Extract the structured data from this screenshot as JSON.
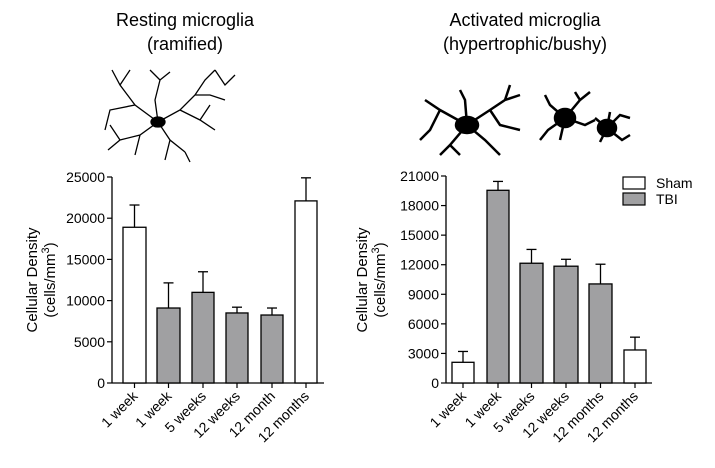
{
  "panels": [
    {
      "title": "Resting microglia",
      "subtitle": "(ramified)",
      "image": "ramified-microglia-drawing"
    },
    {
      "title": "Activated microglia",
      "subtitle": "(hypertrophic/bushy)",
      "image": "bushy-microglia-drawing"
    }
  ],
  "chart_data": [
    {
      "type": "bar",
      "ylabel": "Cellular Density",
      "ylabel_units": "(cells/mm",
      "ylabel_sup": "3",
      "ylabel_close": ")",
      "ylim": [
        0,
        25000
      ],
      "yticks": [
        "0",
        "5000",
        "10000",
        "15000",
        "20000",
        "25000"
      ],
      "ytick_values": [
        0,
        5000,
        10000,
        15000,
        20000,
        25000
      ],
      "categories": [
        "1 week",
        "1 week",
        "5 weeks",
        "12 weeks",
        "12 month",
        "12 months"
      ],
      "groups": [
        "Sham",
        "TBI",
        "TBI",
        "TBI",
        "TBI",
        "Sham"
      ],
      "values": [
        18900,
        9100,
        11000,
        8500,
        8250,
        22100
      ],
      "errors": [
        2700,
        3050,
        2500,
        700,
        850,
        2800
      ]
    },
    {
      "type": "bar",
      "ylabel": "Cellular Density",
      "ylabel_units": "(cells/mm",
      "ylabel_sup": "3",
      "ylabel_close": ")",
      "ylim": [
        0,
        21000
      ],
      "yticks": [
        "0",
        "3000",
        "6000",
        "9000",
        "12000",
        "15000",
        "18000",
        "21000"
      ],
      "ytick_values": [
        0,
        3000,
        6000,
        9000,
        12000,
        15000,
        18000,
        21000
      ],
      "categories": [
        "1 week",
        "1 week",
        "5 weeks",
        "12 weeks",
        "12 months",
        "12 months"
      ],
      "groups": [
        "Sham",
        "TBI",
        "TBI",
        "TBI",
        "TBI",
        "Sham"
      ],
      "values": [
        2100,
        19550,
        12150,
        11850,
        10050,
        3350
      ],
      "errors": [
        1100,
        900,
        1400,
        700,
        2000,
        1300
      ],
      "legend": {
        "position": "top-right",
        "entries": [
          {
            "label": "Sham",
            "color": "#ffffff"
          },
          {
            "label": "TBI",
            "color": "#a0a0a2"
          }
        ]
      }
    }
  ],
  "colors": {
    "Sham": "#ffffff",
    "TBI": "#a0a0a2",
    "axis": "#000000"
  }
}
